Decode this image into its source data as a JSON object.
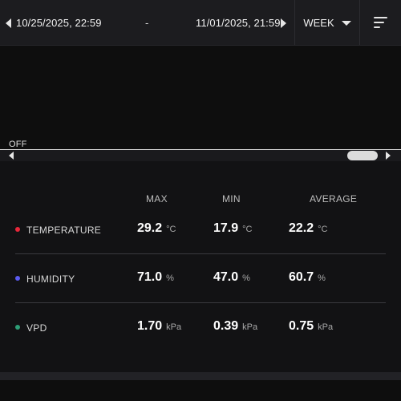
{
  "toolbar": {
    "start_date": "10/25/2025, 22:59",
    "separator": "-",
    "end_date": "11/01/2025, 21:59",
    "period": "WEEK"
  },
  "chart": {
    "off_label": "OFF"
  },
  "stats": {
    "headers": {
      "max": "MAX",
      "min": "MIN",
      "average": "AVERAGE"
    },
    "rows": [
      {
        "name": "TEMPERATURE",
        "color": "#e8273a",
        "max": "29.2",
        "min": "17.9",
        "average": "22.2",
        "unit": "°C"
      },
      {
        "name": "HUMIDITY",
        "color": "#5b5bf0",
        "max": "71.0",
        "min": "47.0",
        "average": "60.7",
        "unit": "%"
      },
      {
        "name": "VPD",
        "color": "#2e9e77",
        "max": "1.70",
        "min": "0.39",
        "average": "0.75",
        "unit": "kPa"
      }
    ]
  },
  "icons": {
    "prev": "triangle-left-icon",
    "next": "triangle-right-icon",
    "period_dropdown": "caret-down-icon",
    "sort": "sort-lines-icon"
  }
}
